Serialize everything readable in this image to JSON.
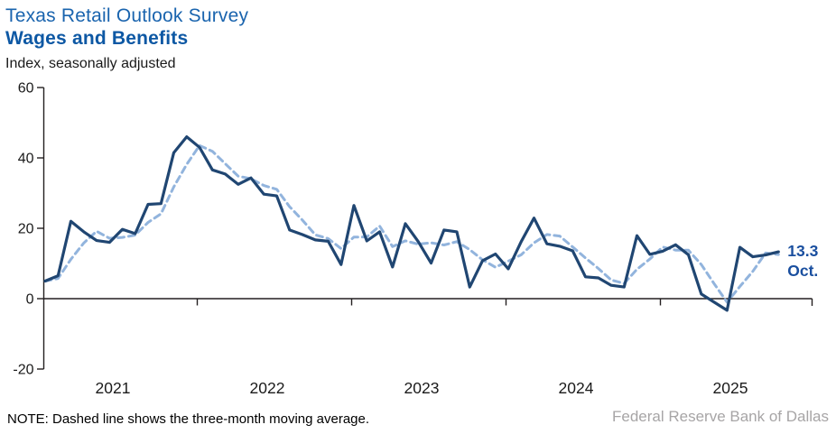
{
  "header": {
    "title": "Texas Retail Outlook Survey",
    "subtitle": "Wages and Benefits",
    "axis_units_note": "Index, seasonally adjusted"
  },
  "footer": {
    "note": "NOTE: Dashed line shows the three-month moving average.",
    "source": "Federal Reserve Bank of Dallas"
  },
  "annotation": {
    "value": "13.3",
    "month": "Oct."
  },
  "colors": {
    "title_blue": "#1a64ae",
    "subtitle_blue": "#0d58a4",
    "series_line": "#204672",
    "moving_average_line": "#92b4dd",
    "annotation_text": "#1a4f9f",
    "axis": "#231f20",
    "tick_label": "#1a1a1a",
    "source_gray": "#a7a5a6"
  },
  "chart_data": {
    "type": "line",
    "title": "Texas Retail Outlook Survey — Wages and Benefits",
    "ylabel": "Index, seasonally adjusted",
    "ylim": [
      -20,
      60
    ],
    "y_ticks": [
      60,
      40,
      20,
      0,
      -20
    ],
    "x_year_labels": [
      "2021",
      "2022",
      "2023",
      "2024",
      "2025"
    ],
    "frequency": "monthly",
    "start_month": "2021-01",
    "end_month": "2025-10",
    "legend_position": "none",
    "grid": false,
    "series": [
      {
        "name": "Wages and benefits index",
        "style": "solid",
        "values": [
          5.0,
          6.5,
          22.0,
          19.0,
          16.5,
          16.0,
          19.7,
          18.5,
          26.8,
          27.0,
          41.5,
          46.0,
          43.0,
          36.6,
          35.4,
          32.5,
          34.3,
          29.7,
          29.2,
          19.5,
          18.2,
          16.7,
          16.3,
          9.7,
          26.5,
          16.4,
          19.0,
          9.0,
          21.3,
          16.2,
          10.1,
          19.5,
          19.0,
          3.3,
          10.8,
          12.7,
          8.5,
          16.2,
          22.9,
          15.6,
          14.9,
          13.6,
          6.2,
          5.9,
          3.8,
          3.3,
          17.9,
          12.6,
          13.5,
          15.3,
          12.5,
          1.3,
          -1.0,
          -3.3,
          14.6,
          11.9,
          12.4,
          13.3
        ]
      },
      {
        "name": "Three-month moving average",
        "style": "dashed",
        "derived_from": "Wages and benefits index",
        "moving_average_window": 3
      }
    ],
    "last_point_label": "13.3 Oct."
  }
}
